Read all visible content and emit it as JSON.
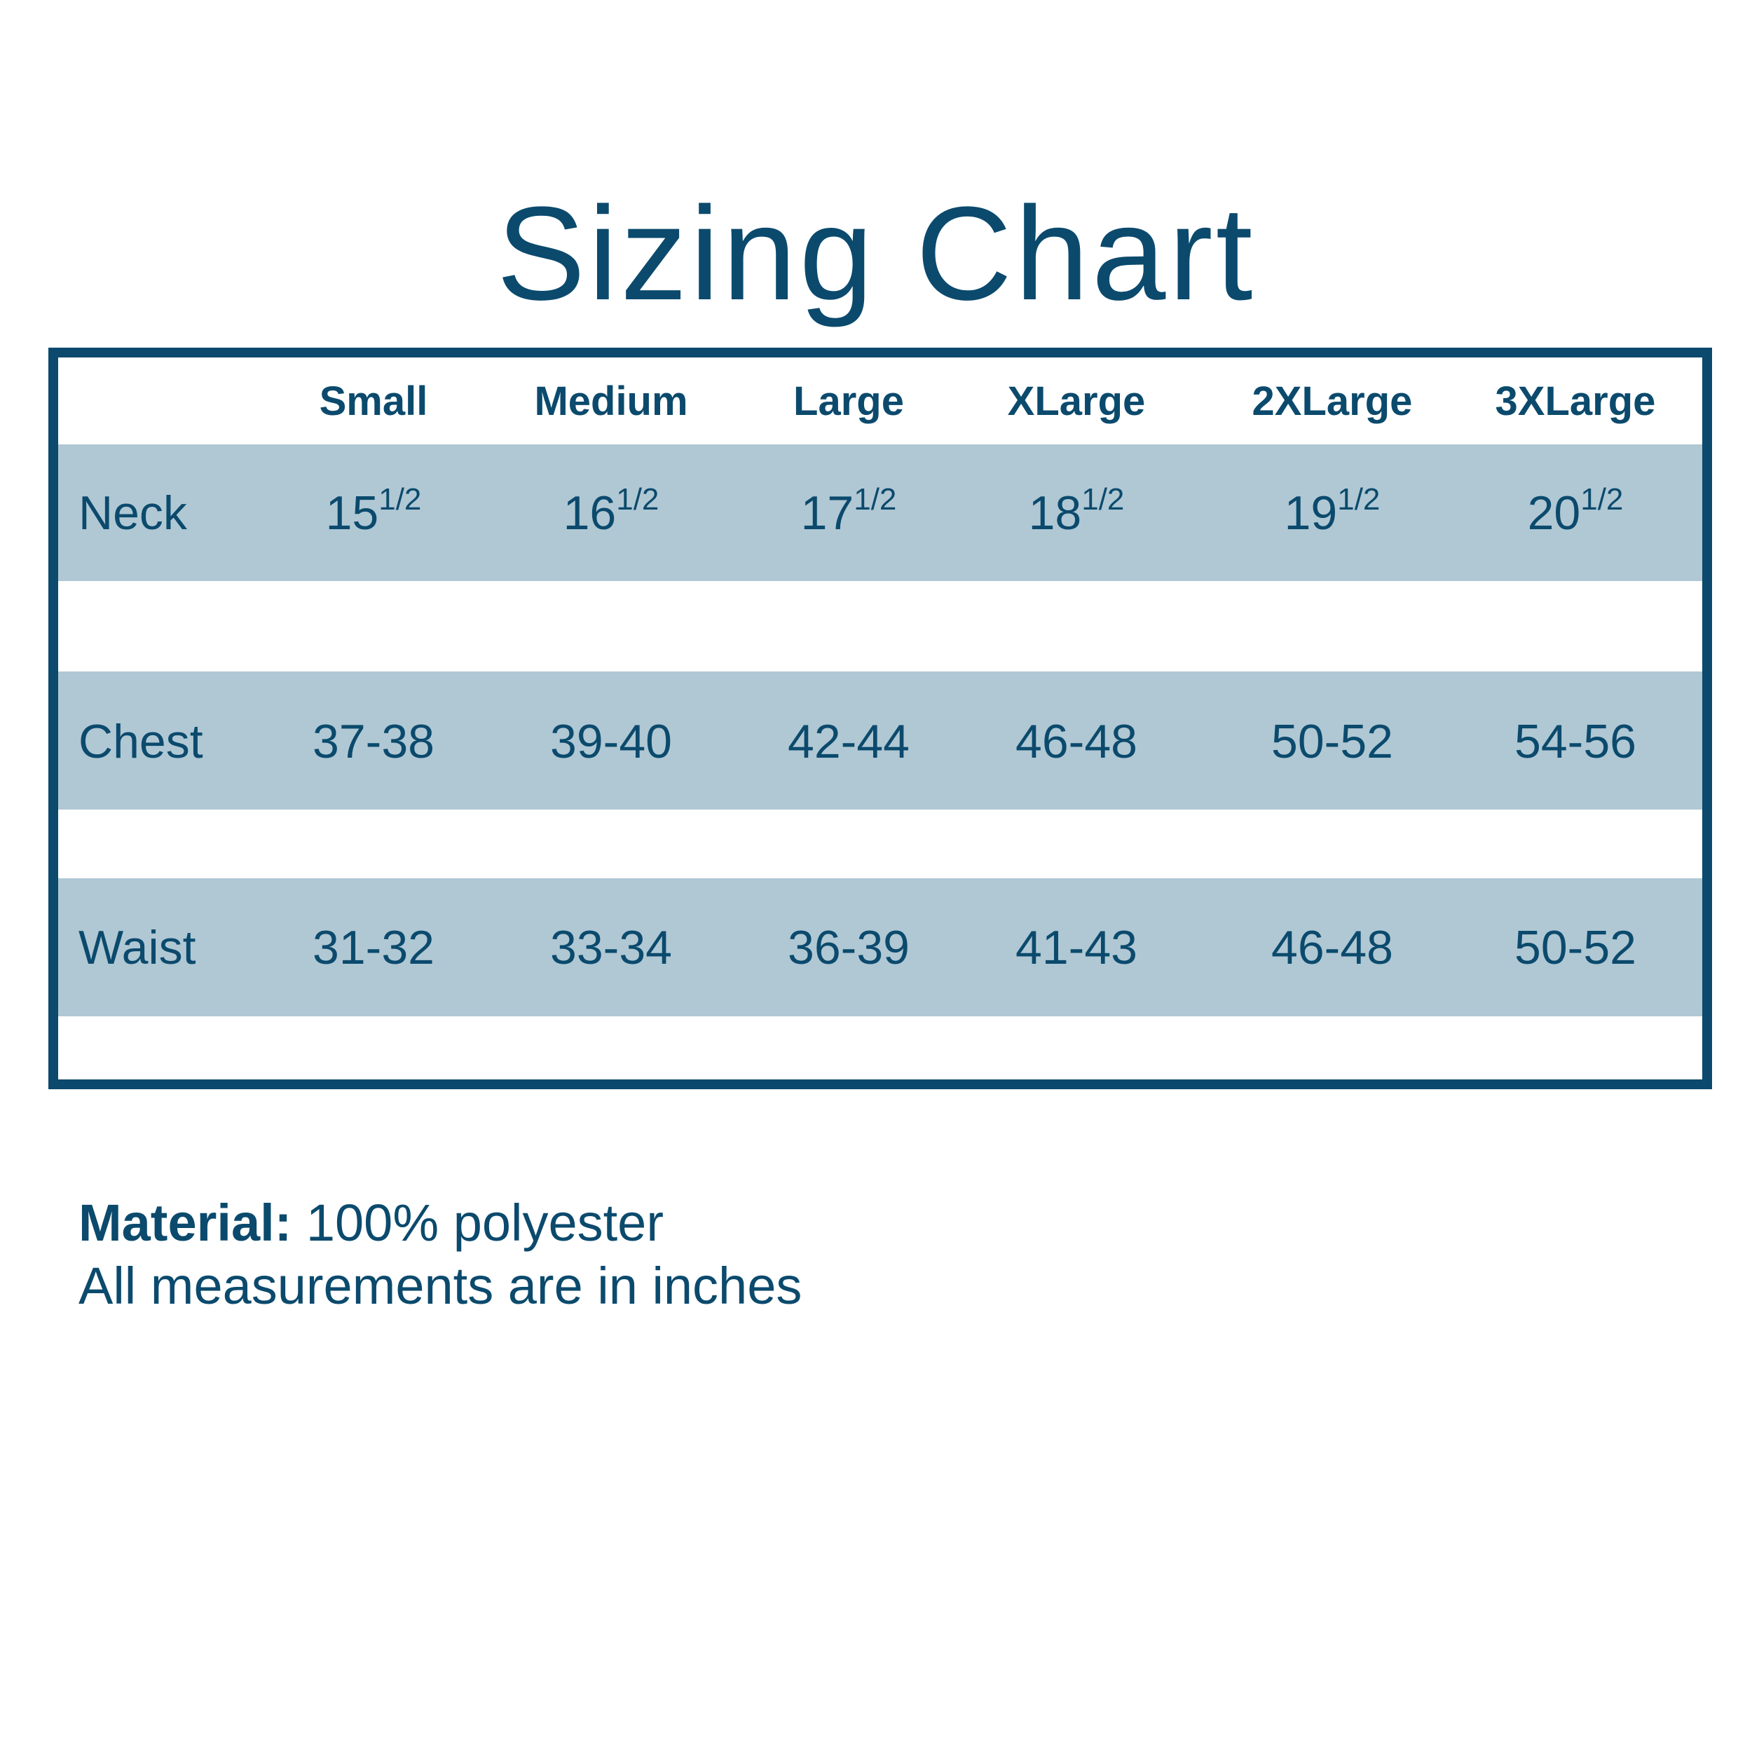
{
  "title": "Sizing Chart",
  "colors": {
    "primary": "#0b4a6d",
    "band": "#b0c8d4"
  },
  "sizes": [
    "Small",
    "Medium",
    "Large",
    "XLarge",
    "2XLarge",
    "3XLarge"
  ],
  "rows": [
    {
      "label": "Neck",
      "values": [
        "15",
        "16",
        "17",
        "18",
        "19",
        "20"
      ],
      "fraction": "1/2"
    },
    {
      "label": "Chest",
      "values": [
        "37-38",
        "39-40",
        "42-44",
        "46-48",
        "50-52",
        "54-56"
      ]
    },
    {
      "label": "Waist",
      "values": [
        "31-32",
        "33-34",
        "36-39",
        "41-43",
        "46-48",
        "50-52"
      ]
    }
  ],
  "notes": {
    "material_label": "Material:",
    "material_value": "100% polyester",
    "units": "All measurements are in inches"
  }
}
